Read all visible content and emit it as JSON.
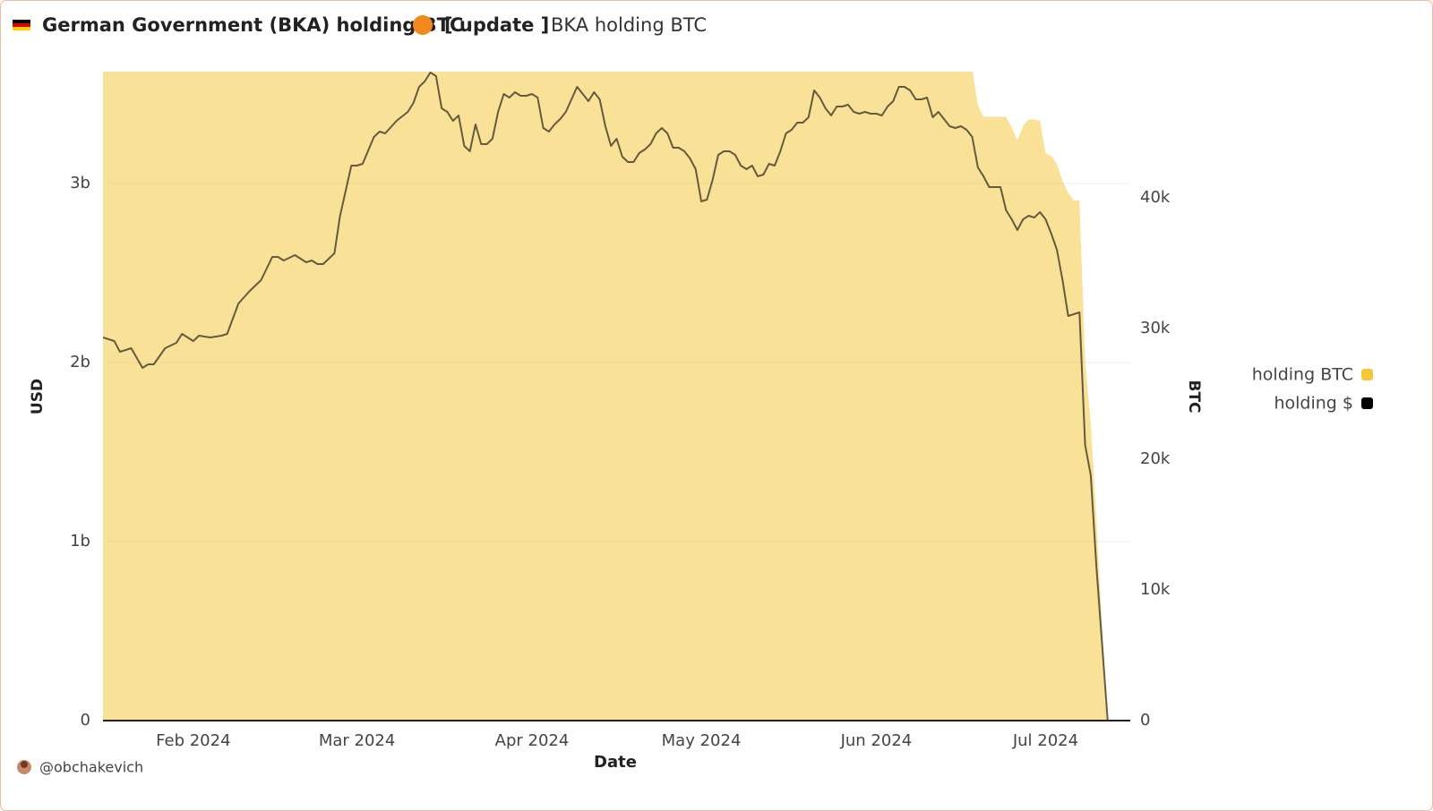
{
  "chart_data": {
    "type": "line",
    "title": "German Government (BKA) holding BTC",
    "title_tag": "[ update ]",
    "subtitle": "BKA holding BTC",
    "author": "@obchakevich",
    "x_label": "Date",
    "y_label": "USD",
    "y2_label": "BTC",
    "xlim": [
      "2024-01-16",
      "2024-07-16"
    ],
    "xticks": [
      {
        "value": "2024-02-01",
        "label": "Feb 2024"
      },
      {
        "value": "2024-03-01",
        "label": "Mar 2024"
      },
      {
        "value": "2024-04-01",
        "label": "Apr 2024"
      },
      {
        "value": "2024-05-01",
        "label": "May 2024"
      },
      {
        "value": "2024-06-01",
        "label": "Jun 2024"
      },
      {
        "value": "2024-07-01",
        "label": "Jul 2024"
      }
    ],
    "ylim": [
      0,
      3625000000
    ],
    "yticks": [
      0,
      {
        "value": 1000000000,
        "label": "1b"
      },
      {
        "value": 2000000000,
        "label": "2b"
      },
      {
        "value": 3000000000,
        "label": "3b"
      }
    ],
    "y2lim": [
      0,
      49660
    ],
    "y2ticks": [
      0,
      {
        "value": 10000,
        "label": "10k"
      },
      {
        "value": 20000,
        "label": "20k"
      },
      {
        "value": 30000,
        "label": "30k"
      },
      {
        "value": 40000,
        "label": "40k"
      }
    ],
    "grid": true,
    "legend": "right",
    "series": [
      {
        "name": "holding BTC",
        "type": "area",
        "axis": "y2",
        "color": "#f4c83a",
        "x": [
          "2024-01-16",
          "2024-06-18",
          "2024-06-19",
          "2024-06-20",
          "2024-06-21",
          "2024-06-22",
          "2024-06-23",
          "2024-06-24",
          "2024-06-25",
          "2024-06-26",
          "2024-06-27",
          "2024-06-28",
          "2024-06-29",
          "2024-06-30",
          "2024-07-01",
          "2024-07-02",
          "2024-07-03",
          "2024-07-04",
          "2024-07-05",
          "2024-07-06",
          "2024-07-07",
          "2024-07-08",
          "2024-07-09",
          "2024-07-10",
          "2024-07-11",
          "2024-07-12"
        ],
        "values": [
          49858,
          49858,
          47100,
          46200,
          46200,
          46200,
          46200,
          46200,
          45400,
          44400,
          45500,
          46000,
          46000,
          45900,
          43400,
          43200,
          42600,
          41300,
          40400,
          39800,
          39800,
          27460,
          22800,
          15400,
          7200,
          0
        ]
      },
      {
        "name": "holding $",
        "type": "line",
        "axis": "y",
        "color": "#000000",
        "x": [
          "2024-01-16",
          "2024-01-18",
          "2024-01-19",
          "2024-01-21",
          "2024-01-23",
          "2024-01-24",
          "2024-01-25",
          "2024-01-27",
          "2024-01-29",
          "2024-01-30",
          "2024-02-01",
          "2024-02-02",
          "2024-02-04",
          "2024-02-06",
          "2024-02-07",
          "2024-02-09",
          "2024-02-11",
          "2024-02-13",
          "2024-02-15",
          "2024-02-16",
          "2024-02-17",
          "2024-02-19",
          "2024-02-21",
          "2024-02-22",
          "2024-02-23",
          "2024-02-24",
          "2024-02-26",
          "2024-02-27",
          "2024-02-29",
          "2024-03-01",
          "2024-03-02",
          "2024-03-04",
          "2024-03-05",
          "2024-03-06",
          "2024-03-08",
          "2024-03-10",
          "2024-03-11",
          "2024-03-12",
          "2024-03-13",
          "2024-03-14",
          "2024-03-15",
          "2024-03-16",
          "2024-03-17",
          "2024-03-18",
          "2024-03-19",
          "2024-03-20",
          "2024-03-21",
          "2024-03-22",
          "2024-03-23",
          "2024-03-24",
          "2024-03-25",
          "2024-03-26",
          "2024-03-27",
          "2024-03-28",
          "2024-03-29",
          "2024-03-30",
          "2024-03-31",
          "2024-04-01",
          "2024-04-02",
          "2024-04-03",
          "2024-04-04",
          "2024-04-05",
          "2024-04-06",
          "2024-04-07",
          "2024-04-08",
          "2024-04-09",
          "2024-04-10",
          "2024-04-11",
          "2024-04-12",
          "2024-04-13",
          "2024-04-14",
          "2024-04-15",
          "2024-04-16",
          "2024-04-17",
          "2024-04-18",
          "2024-04-19",
          "2024-04-20",
          "2024-04-21",
          "2024-04-22",
          "2024-04-23",
          "2024-04-24",
          "2024-04-25",
          "2024-04-26",
          "2024-04-27",
          "2024-04-28",
          "2024-04-29",
          "2024-04-30",
          "2024-05-01",
          "2024-05-02",
          "2024-05-03",
          "2024-05-04",
          "2024-05-05",
          "2024-05-06",
          "2024-05-07",
          "2024-05-08",
          "2024-05-09",
          "2024-05-10",
          "2024-05-11",
          "2024-05-12",
          "2024-05-13",
          "2024-05-14",
          "2024-05-15",
          "2024-05-16",
          "2024-05-17",
          "2024-05-18",
          "2024-05-19",
          "2024-05-20",
          "2024-05-21",
          "2024-05-22",
          "2024-05-23",
          "2024-05-24",
          "2024-05-25",
          "2024-05-26",
          "2024-05-27",
          "2024-05-28",
          "2024-05-29",
          "2024-05-30",
          "2024-05-31",
          "2024-06-01",
          "2024-06-02",
          "2024-06-03",
          "2024-06-04",
          "2024-06-05",
          "2024-06-06",
          "2024-06-07",
          "2024-06-08",
          "2024-06-09",
          "2024-06-10",
          "2024-06-11",
          "2024-06-12",
          "2024-06-13",
          "2024-06-14",
          "2024-06-15",
          "2024-06-16",
          "2024-06-17",
          "2024-06-18",
          "2024-06-19",
          "2024-06-20",
          "2024-06-21",
          "2024-06-22",
          "2024-06-23",
          "2024-06-24",
          "2024-06-25",
          "2024-06-26",
          "2024-06-27",
          "2024-06-28",
          "2024-06-29",
          "2024-06-30",
          "2024-07-01",
          "2024-07-02",
          "2024-07-03",
          "2024-07-04",
          "2024-07-05",
          "2024-07-06",
          "2024-07-07",
          "2024-07-08",
          "2024-07-09",
          "2024-07-10",
          "2024-07-11",
          "2024-07-12",
          "2024-07-14",
          "2024-07-16"
        ],
        "values": [
          2140000000,
          2120000000,
          2060000000,
          2080000000,
          1970000000,
          1990000000,
          1990000000,
          2080000000,
          2110000000,
          2160000000,
          2120000000,
          2150000000,
          2140000000,
          2150000000,
          2160000000,
          2330000000,
          2400000000,
          2460000000,
          2590000000,
          2590000000,
          2570000000,
          2600000000,
          2560000000,
          2570000000,
          2550000000,
          2550000000,
          2610000000,
          2820000000,
          3100000000,
          3100000000,
          3110000000,
          3260000000,
          3290000000,
          3280000000,
          3350000000,
          3400000000,
          3450000000,
          3540000000,
          3570000000,
          3620000000,
          3600000000,
          3420000000,
          3400000000,
          3350000000,
          3380000000,
          3210000000,
          3180000000,
          3330000000,
          3220000000,
          3220000000,
          3250000000,
          3400000000,
          3500000000,
          3480000000,
          3510000000,
          3490000000,
          3490000000,
          3500000000,
          3480000000,
          3310000000,
          3290000000,
          3330000000,
          3360000000,
          3400000000,
          3470000000,
          3540000000,
          3500000000,
          3460000000,
          3510000000,
          3470000000,
          3320000000,
          3210000000,
          3250000000,
          3150000000,
          3120000000,
          3120000000,
          3170000000,
          3190000000,
          3220000000,
          3280000000,
          3310000000,
          3280000000,
          3200000000,
          3200000000,
          3180000000,
          3140000000,
          3080000000,
          2900000000,
          2910000000,
          3020000000,
          3160000000,
          3180000000,
          3180000000,
          3160000000,
          3100000000,
          3080000000,
          3100000000,
          3040000000,
          3050000000,
          3110000000,
          3100000000,
          3180000000,
          3280000000,
          3300000000,
          3340000000,
          3340000000,
          3370000000,
          3520000000,
          3480000000,
          3420000000,
          3380000000,
          3430000000,
          3430000000,
          3440000000,
          3400000000,
          3390000000,
          3400000000,
          3390000000,
          3390000000,
          3380000000,
          3430000000,
          3460000000,
          3540000000,
          3540000000,
          3520000000,
          3470000000,
          3470000000,
          3480000000,
          3370000000,
          3400000000,
          3360000000,
          3320000000,
          3310000000,
          3320000000,
          3300000000,
          3260000000,
          3090000000,
          3040000000,
          2980000000,
          2980000000,
          2980000000,
          2850000000,
          2800000000,
          2740000000,
          2800000000,
          2820000000,
          2810000000,
          2840000000,
          2800000000,
          2720000000,
          2630000000,
          2460000000,
          2260000000,
          2270000000,
          2280000000,
          1540000000,
          1370000000,
          860000000,
          430000000,
          0,
          0,
          0
        ]
      }
    ]
  }
}
